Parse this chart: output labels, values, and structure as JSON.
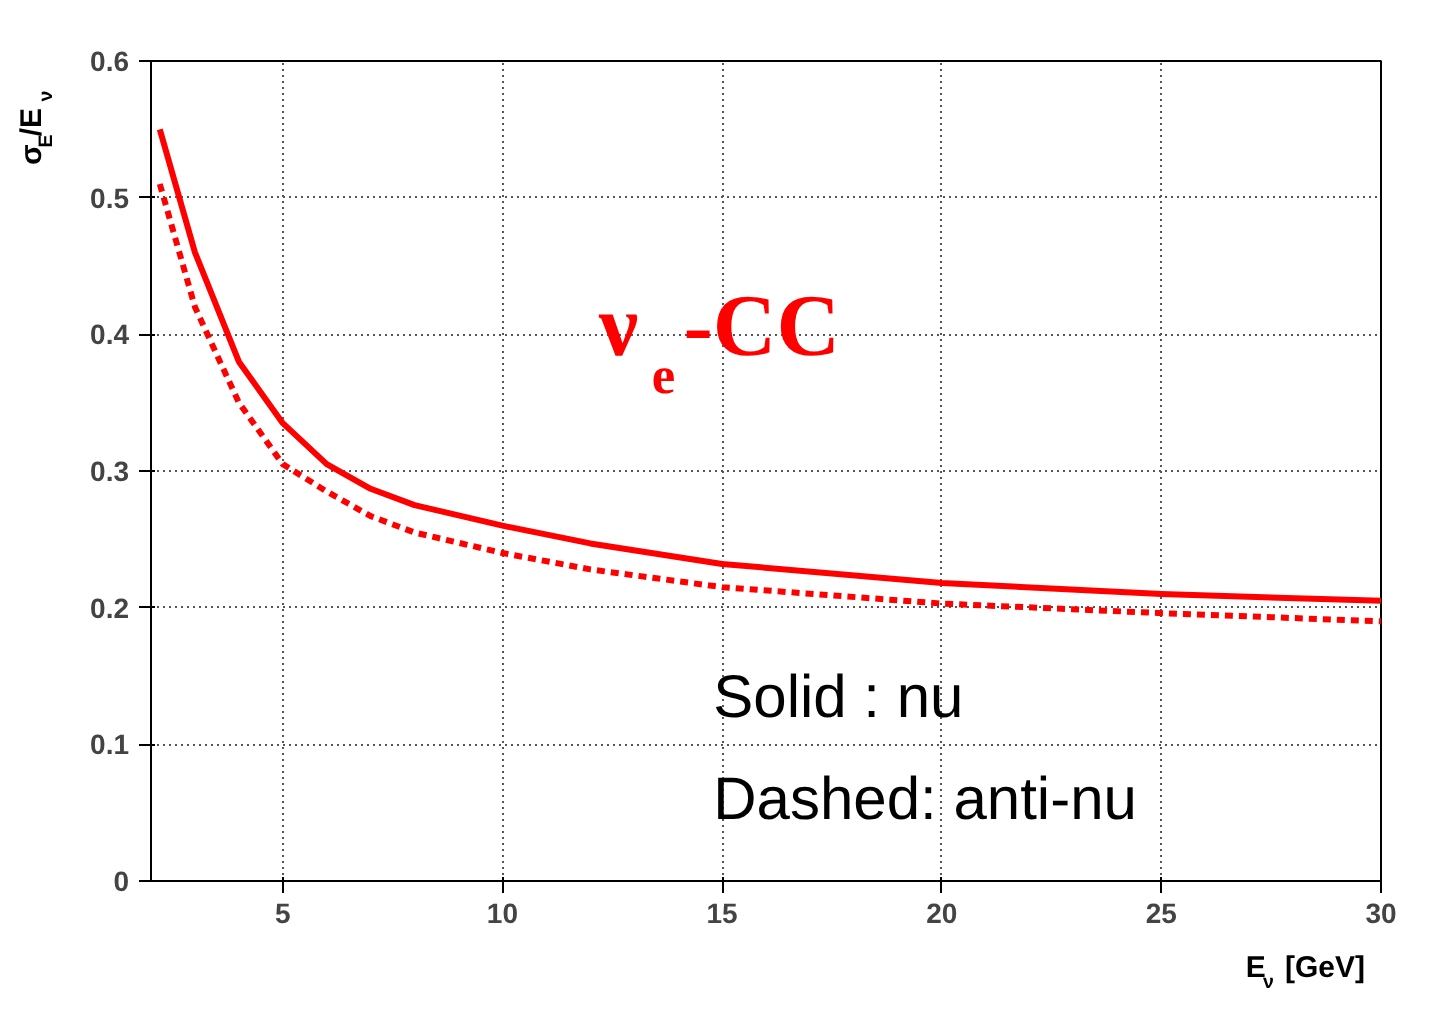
{
  "chart_data": {
    "type": "line",
    "xlabel": "E$_{ν}$ [GeV]",
    "ylabel": "σ$_{E}$/E$_{ν}$",
    "xlim": [
      2,
      30
    ],
    "ylim": [
      0,
      0.6
    ],
    "xticks": [
      5,
      10,
      15,
      20,
      25,
      30
    ],
    "yticks": [
      0,
      0.1,
      0.2,
      0.3,
      0.4,
      0.5,
      0.6
    ],
    "grid": true,
    "series": [
      {
        "color": "#ff0000",
        "line_style": "solid",
        "x": [
          2.2,
          3,
          4,
          5,
          6,
          7,
          8,
          10,
          12,
          15,
          20,
          25,
          30
        ],
        "values": [
          0.55,
          0.46,
          0.38,
          0.335,
          0.305,
          0.287,
          0.275,
          0.26,
          0.247,
          0.232,
          0.218,
          0.21,
          0.205
        ]
      },
      {
        "color": "#ff0000",
        "line_style": "dashed",
        "x": [
          2.2,
          3,
          4,
          5,
          6,
          7,
          8,
          10,
          12,
          15,
          20,
          25,
          30
        ],
        "values": [
          0.51,
          0.42,
          0.35,
          0.305,
          0.285,
          0.267,
          0.255,
          0.24,
          0.228,
          0.215,
          0.203,
          0.196,
          0.19
        ]
      }
    ],
    "annotations": [
      "ν$_{e}$-CC",
      "Solid : nu",
      "Dashed: anti-nu"
    ]
  }
}
